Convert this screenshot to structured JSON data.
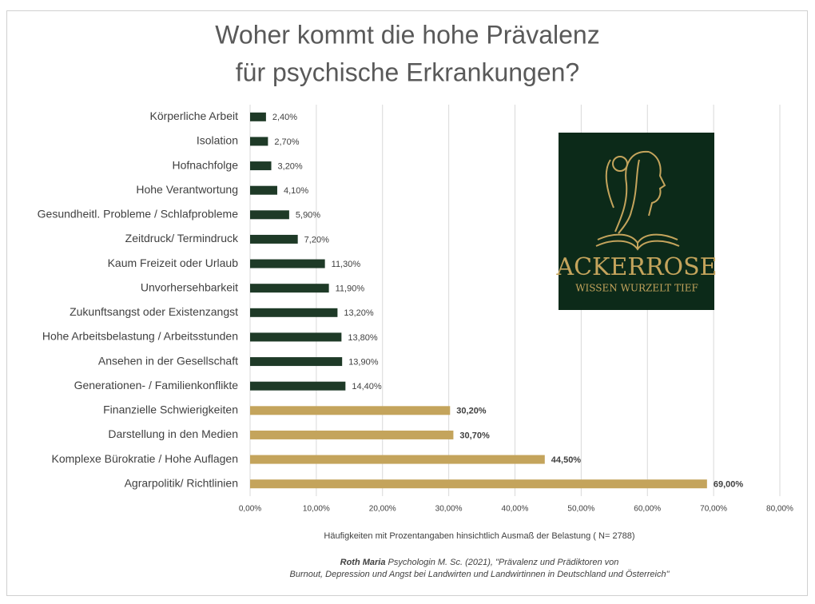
{
  "chart_data": {
    "type": "barh",
    "title": [
      "Woher kommt die hohe Prävalenz",
      "für psychische Erkrankungen?"
    ],
    "categories": [
      "Körperliche Arbeit",
      "Isolation",
      "Hofnachfolge",
      "Hohe Verantwortung",
      "Gesundheitl. Probleme / Schlafprobleme",
      "Zeitdruck/ Termindruck",
      "Kaum Freizeit oder Urlaub",
      "Unvorhersehbarkeit",
      "Zukunftsangst oder Existenzangst",
      "Hohe Arbeitsbelastung / Arbeitsstunden",
      "Ansehen in der Gesellschaft",
      "Generationen- / Familienkonflikte",
      "Finanzielle Schwierigkeiten",
      "Darstellung in den Medien",
      "Komplexe Bürokratie / Hohe Auflagen",
      "Agrarpolitik/ Richtlinien"
    ],
    "values": [
      2.4,
      2.7,
      3.2,
      4.1,
      5.9,
      7.2,
      11.3,
      11.9,
      13.2,
      13.8,
      13.9,
      14.4,
      30.2,
      30.7,
      44.5,
      69.0
    ],
    "value_labels": [
      "2,40%",
      "2,70%",
      "3,20%",
      "4,10%",
      "5,90%",
      "7,20%",
      "11,30%",
      "11,90%",
      "13,20%",
      "13,80%",
      "13,90%",
      "14,40%",
      "30,20%",
      "30,70%",
      "44,50%",
      "69,00%"
    ],
    "colors": [
      "#1e3a27",
      "#1e3a27",
      "#1e3a27",
      "#1e3a27",
      "#1e3a27",
      "#1e3a27",
      "#1e3a27",
      "#1e3a27",
      "#1e3a27",
      "#1e3a27",
      "#1e3a27",
      "#1e3a27",
      "#c4a45c",
      "#c4a45c",
      "#c4a45c",
      "#c4a45c"
    ],
    "xlim": [
      0,
      80
    ],
    "xticks": [
      {
        "value": 0,
        "label": "0,00%"
      },
      {
        "value": 10,
        "label": "10,00%"
      },
      {
        "value": 20,
        "label": "20,00%"
      },
      {
        "value": 30,
        "label": "30,00%"
      },
      {
        "value": 40,
        "label": "40,00%"
      },
      {
        "value": 50,
        "label": "50,00%"
      },
      {
        "value": 60,
        "label": "60,00%"
      },
      {
        "value": 70,
        "label": "70,00%"
      },
      {
        "value": 80,
        "label": "80,00%"
      }
    ],
    "grid": true,
    "xlabel": "Häufigkeiten mit Prozentangaben hinsichtlich Ausmaß der Belastung ( N= 2788)",
    "source": {
      "author": "Roth Maria",
      "lines": [
        " Psychologin M. Sc. (2021), \"Prävalenz und Prädiktoren von",
        "Burnout, Depression und Angst bei Landwirten und Landwirtinnen in Deutschland und Österreich\""
      ]
    },
    "logo": {
      "name": "ACKERROSE",
      "tagline": "WISSEN WURZELT TIEF"
    }
  }
}
